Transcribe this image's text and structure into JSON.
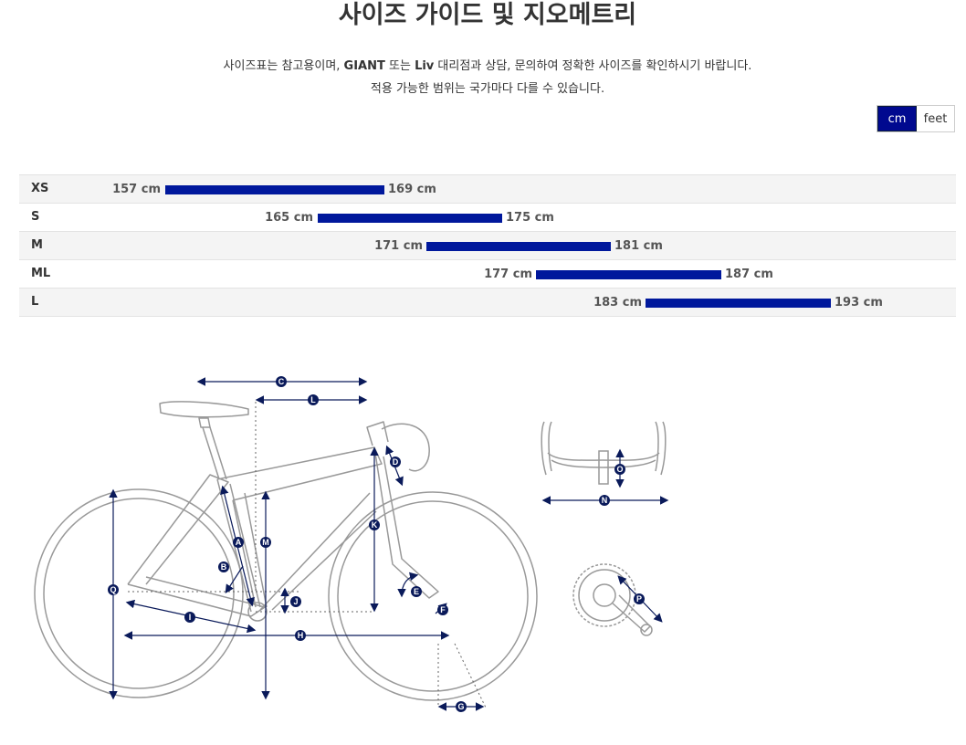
{
  "header": {
    "title": "사이즈 가이드 및 지오메트리",
    "note_line1_pre": "사이즈표는 참고용이며, ",
    "note_line1_brand1": "GIANT",
    "note_line1_mid": " 또는 ",
    "note_line1_brand2": "Liv",
    "note_line1_post": " 대리점과 상담, 문의하여 정확한 사이즈를 확인하시기 바랍니다.",
    "note_line2": "적용 가능한 범위는 국가마다 다를 수 있습니다."
  },
  "unit_toggle": {
    "cm": "cm",
    "feet": "feet",
    "selected": "cm"
  },
  "colors": {
    "accent": "#00098f",
    "bar": "#00189c",
    "diagram_line": "#999999",
    "marker": "#0a1a5a"
  },
  "sizes": [
    {
      "size": "XS",
      "min": "157 cm",
      "max": "169 cm"
    },
    {
      "size": "S",
      "min": "165 cm",
      "max": "175 cm"
    },
    {
      "size": "M",
      "min": "171 cm",
      "max": "181 cm"
    },
    {
      "size": "ML",
      "min": "177 cm",
      "max": "187 cm"
    },
    {
      "size": "L",
      "min": "183 cm",
      "max": "193 cm"
    }
  ],
  "geometry_markers": [
    "A",
    "B",
    "C",
    "D",
    "E",
    "F",
    "G",
    "H",
    "I",
    "J",
    "K",
    "L",
    "M",
    "N",
    "O",
    "P",
    "Q"
  ]
}
